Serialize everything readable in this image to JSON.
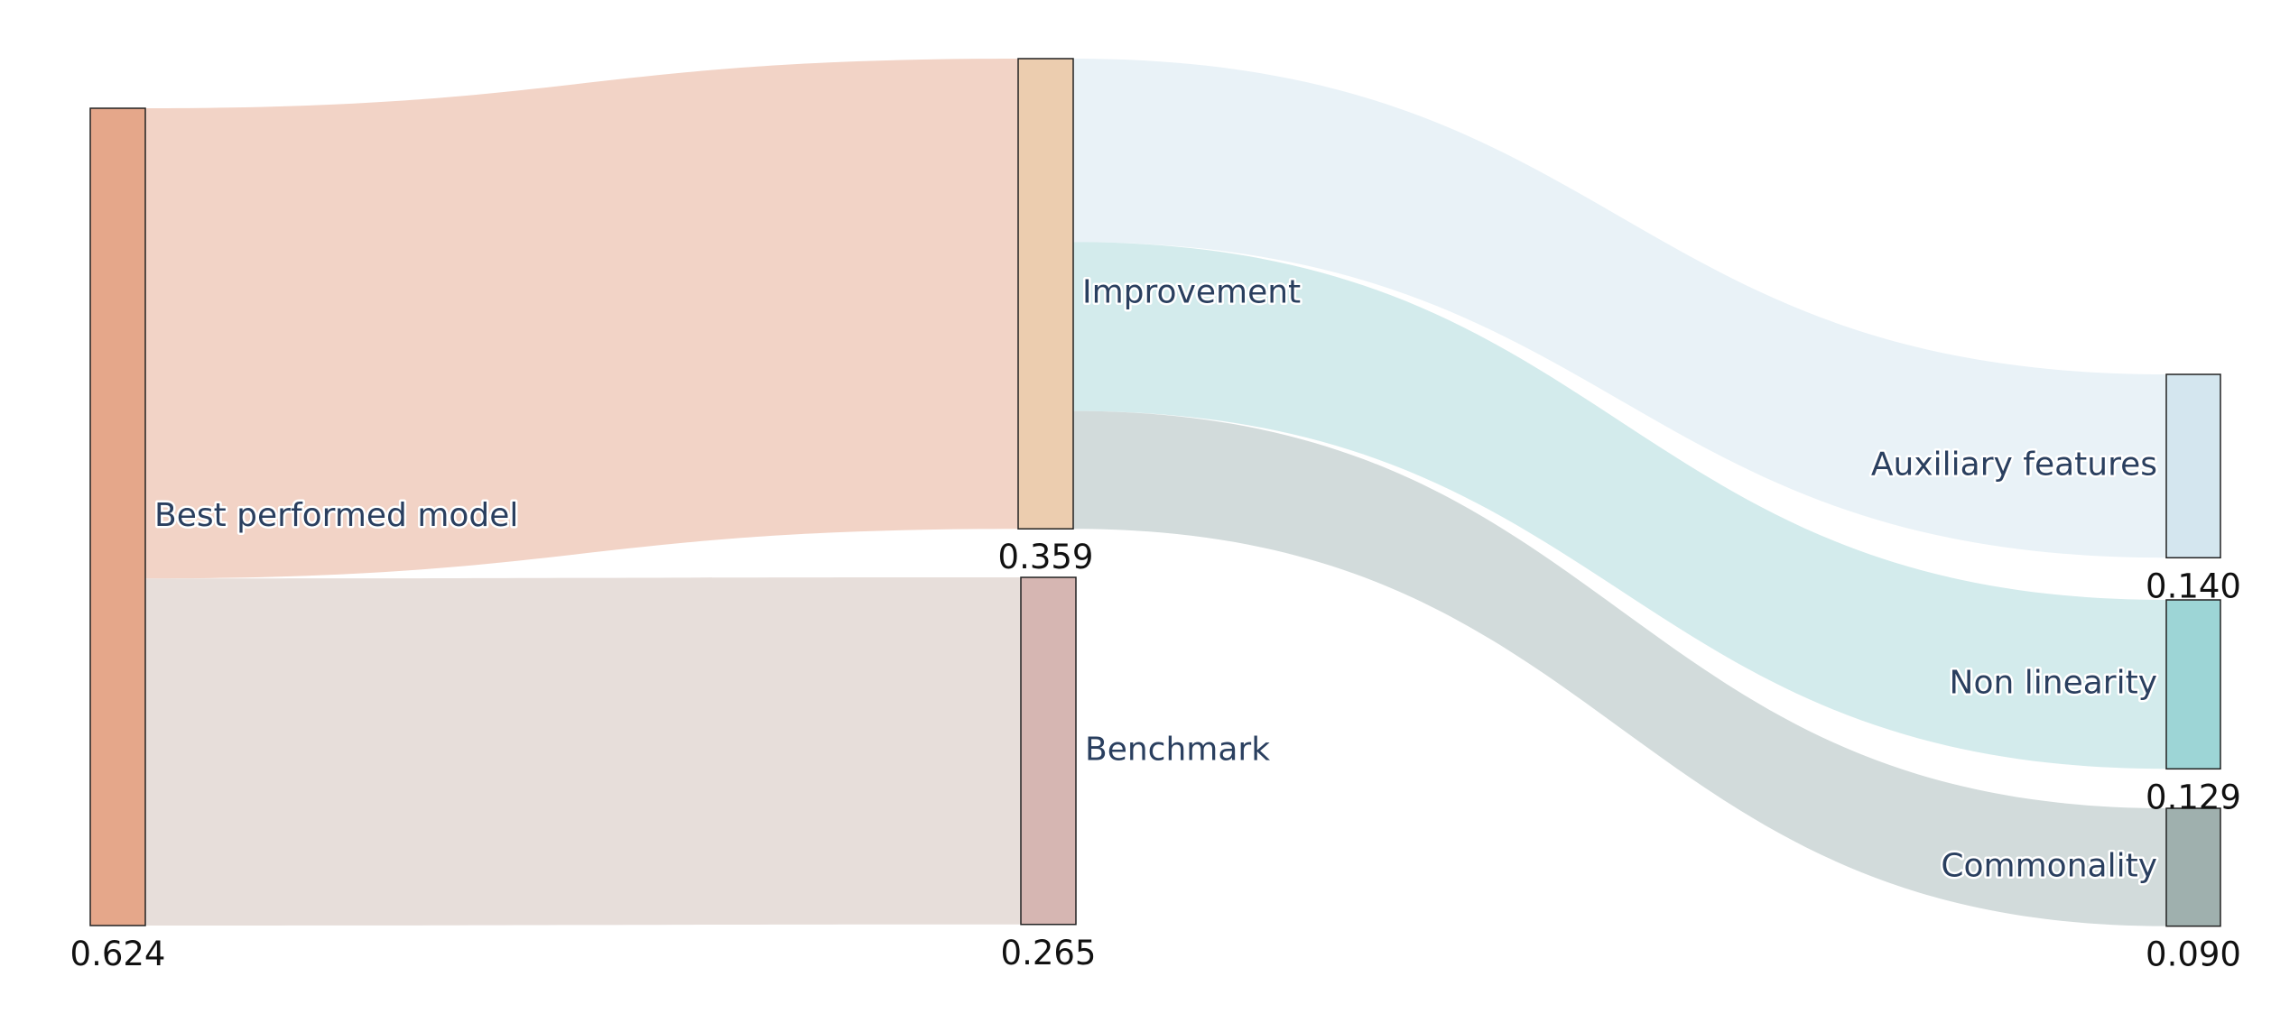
{
  "chart_data": {
    "type": "sankey",
    "nodes": [
      {
        "id": "best",
        "label": "Best performed model",
        "value": 0.624,
        "value_label": "0.624",
        "color": "#E5A78A"
      },
      {
        "id": "improvement",
        "label": "Improvement",
        "value": 0.359,
        "value_label": "0.359",
        "color": "#ECCDAF"
      },
      {
        "id": "benchmark",
        "label": "Benchmark",
        "value": 0.265,
        "value_label": "0.265",
        "color": "#D6B6B2"
      },
      {
        "id": "aux",
        "label": "Auxiliary features",
        "value": 0.14,
        "value_label": "0.140",
        "color": "#D4E6EF"
      },
      {
        "id": "nonlin",
        "label": "Non linearity",
        "value": 0.129,
        "value_label": "0.129",
        "color": "#9DD5D6"
      },
      {
        "id": "common",
        "label": "Commonality",
        "value": 0.09,
        "value_label": "0.090",
        "color": "#9FB0AE"
      }
    ],
    "links": [
      {
        "source": "best",
        "target": "improvement",
        "value": 0.359,
        "color": "#F2D3C6"
      },
      {
        "source": "best",
        "target": "benchmark",
        "value": 0.265,
        "color": "#E7DEDA"
      },
      {
        "source": "improvement",
        "target": "aux",
        "value": 0.14,
        "color": "#E9F2F7"
      },
      {
        "source": "improvement",
        "target": "nonlin",
        "value": 0.129,
        "color": "#D3EBEC"
      },
      {
        "source": "improvement",
        "target": "common",
        "value": 0.09,
        "color": "#D2DBDB"
      }
    ]
  }
}
